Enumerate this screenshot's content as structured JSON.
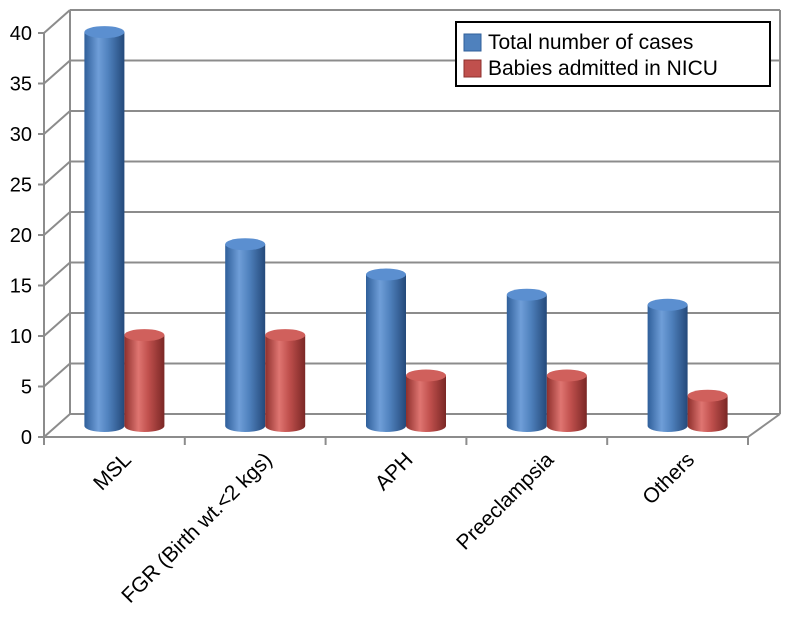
{
  "chart_data": {
    "type": "bar",
    "style": "3d-cylinder",
    "categories": [
      "MSL",
      "FGR (Birth wt.<2 kgs)",
      "APH",
      "Preeclampsia",
      "Others"
    ],
    "series": [
      {
        "name": "Total number of cases",
        "values": [
          39,
          18,
          15,
          13,
          12
        ],
        "color": "#4f81bd"
      },
      {
        "name": "Babies admitted in NICU",
        "values": [
          9,
          9,
          5,
          5,
          3
        ],
        "color": "#c0504d"
      }
    ],
    "yticks": [
      "0",
      "5",
      "10",
      "15",
      "20",
      "25",
      "30",
      "35",
      "40"
    ],
    "ylim": [
      0,
      40
    ],
    "grid": true,
    "legend_position": "top-right"
  }
}
